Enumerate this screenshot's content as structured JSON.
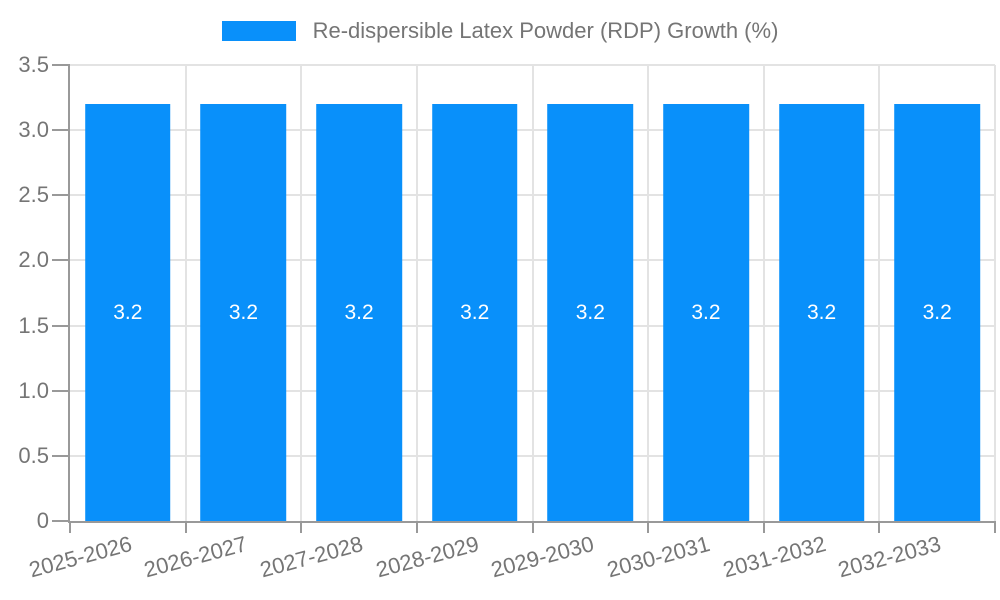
{
  "legend": {
    "label": "Re-dispersible Latex Powder (RDP) Growth (%)"
  },
  "colors": {
    "accent": "#0990fa",
    "grid": "#e3e3e3",
    "axis": "#999999",
    "tick_label": "#757575",
    "legend_text": "#757575",
    "bar_label": "#ffffff",
    "background": "#ffffff"
  },
  "chart_data": {
    "type": "bar",
    "title": "Re-dispersible Latex Powder (RDP) Growth (%)",
    "categories": [
      "2025-2026",
      "2026-2027",
      "2027-2028",
      "2028-2029",
      "2029-2030",
      "2030-2031",
      "2031-2032",
      "2032-2033"
    ],
    "values": [
      3.2,
      3.2,
      3.2,
      3.2,
      3.2,
      3.2,
      3.2,
      3.2
    ],
    "bar_labels": [
      "3.2",
      "3.2",
      "3.2",
      "3.2",
      "3.2",
      "3.2",
      "3.2",
      "3.2"
    ],
    "xlabel": "",
    "ylabel": "",
    "ylim": [
      0,
      3.5
    ],
    "ytick_values": [
      0,
      0.5,
      1.0,
      1.5,
      2.0,
      2.5,
      3.0,
      3.5
    ],
    "ytick_labels": [
      "0",
      "0.5",
      "1.0",
      "1.5",
      "2.0",
      "2.5",
      "3.0",
      "3.5"
    ],
    "grid": true,
    "legend_position": "top-center",
    "x_label_rotation_deg": -15,
    "bar_width_fraction": 0.74
  }
}
